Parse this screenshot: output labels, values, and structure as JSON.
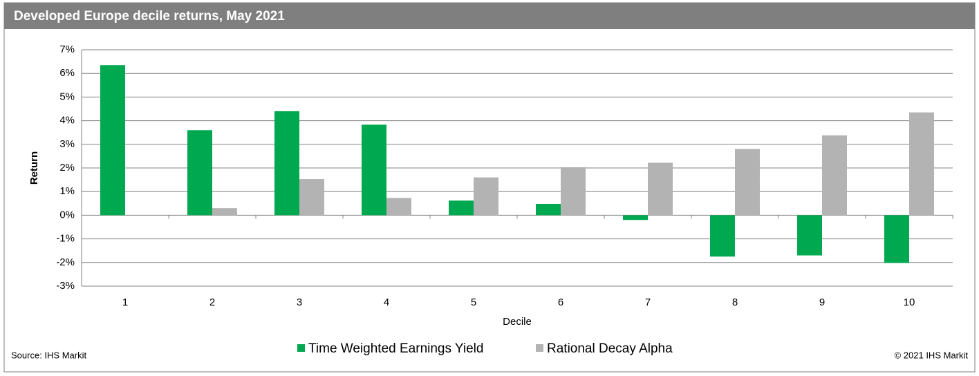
{
  "chart_data": {
    "type": "bar",
    "title": "Developed Europe decile returns, May 2021",
    "x_label": "Decile",
    "y_label": "Return",
    "categories": [
      "1",
      "2",
      "3",
      "4",
      "5",
      "6",
      "7",
      "8",
      "9",
      "10"
    ],
    "series": [
      {
        "name": "Time Weighted Earnings Yield",
        "color": "#00a94f",
        "values": [
          6.35,
          3.6,
          4.4,
          3.83,
          0.62,
          0.48,
          -0.2,
          -1.75,
          -1.7,
          -2.02
        ]
      },
      {
        "name": "Rational Decay Alpha",
        "color": "#b3b3b3",
        "values": [
          0,
          0.3,
          1.53,
          0.73,
          1.6,
          2.03,
          2.22,
          2.8,
          3.38,
          4.35
        ]
      }
    ],
    "ylim": [
      -3,
      7
    ],
    "yticks": [
      {
        "value": -3,
        "label": "-3%"
      },
      {
        "value": -2,
        "label": "-2%"
      },
      {
        "value": -1,
        "label": "-1%"
      },
      {
        "value": 0,
        "label": "0%"
      },
      {
        "value": 1,
        "label": "1%"
      },
      {
        "value": 2,
        "label": "2%"
      },
      {
        "value": 3,
        "label": "3%"
      },
      {
        "value": 4,
        "label": "4%"
      },
      {
        "value": 5,
        "label": "5%"
      },
      {
        "value": 6,
        "label": "6%"
      },
      {
        "value": 7,
        "label": "7%"
      }
    ],
    "grid": true,
    "legend": "bottom",
    "source": "Source: IHS Markit",
    "copyright": "© 2021 IHS Markit"
  }
}
